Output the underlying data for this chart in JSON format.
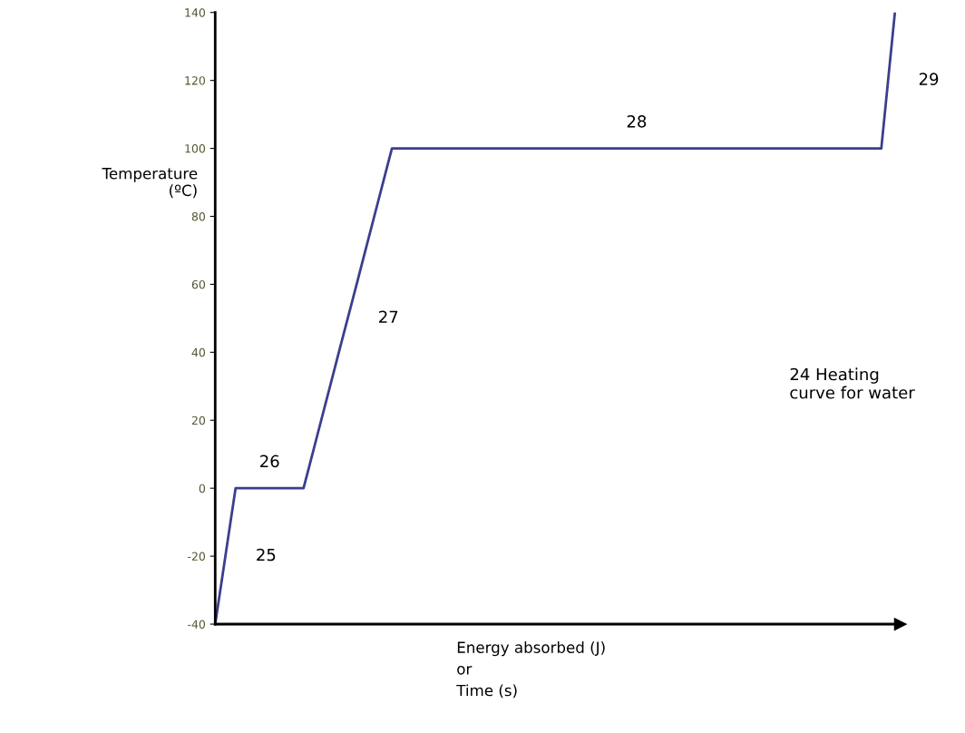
{
  "chart_data": {
    "type": "line",
    "xlabel": "Energy absorbed (J)\nor\nTime (s)",
    "ylabel": "Temperature\n(ºC)",
    "categories": [
      null,
      null,
      null,
      null,
      null,
      null,
      null,
      null,
      null,
      null,
      null,
      null,
      null,
      null,
      null,
      null,
      null,
      null,
      null,
      null,
      null,
      null,
      null,
      null,
      null,
      null,
      null,
      null,
      null,
      null,
      null,
      null,
      null,
      null,
      null,
      null,
      null,
      null,
      null,
      null,
      null,
      null,
      null,
      null,
      null,
      null,
      null,
      null,
      null,
      null,
      null,
      null,
      null,
      null,
      null,
      null,
      null,
      null,
      null,
      null,
      null,
      null,
      null,
      null,
      null,
      null,
      null,
      null,
      null,
      null,
      null,
      null,
      null,
      null,
      null,
      null,
      null,
      null,
      null,
      null,
      null,
      null,
      null,
      null,
      null,
      null,
      null,
      null,
      null,
      null,
      null,
      null,
      null,
      null,
      null,
      null,
      null,
      null,
      null,
      null,
      null
    ],
    "series": [
      {
        "color": "#3a3f8f",
        "values": [
          -40,
          -26.7,
          -13.3,
          0,
          0,
          0,
          0,
          0,
          0,
          0,
          0,
          0,
          0,
          0,
          7.7,
          15.4,
          23.1,
          30.8,
          38.5,
          46.2,
          53.8,
          61.5,
          69.2,
          76.9,
          84.6,
          92.3,
          100,
          100,
          100,
          100,
          100,
          100,
          100,
          100,
          100,
          100,
          100,
          100,
          100,
          100,
          100,
          100,
          100,
          100,
          100,
          100,
          100,
          100,
          100,
          100,
          100,
          100,
          100,
          100,
          100,
          100,
          100,
          100,
          100,
          100,
          100,
          100,
          100,
          100,
          100,
          100,
          100,
          100,
          100,
          100,
          100,
          100,
          100,
          100,
          100,
          100,
          100,
          100,
          100,
          100,
          100,
          100,
          100,
          100,
          100,
          100,
          100,
          100,
          100,
          100,
          100,
          100,
          100,
          100,
          100,
          100,
          100,
          100,
          100,
          120,
          140
        ]
      }
    ],
    "ylim": [
      -40,
      140
    ],
    "yticks": [
      -40,
      -20,
      0,
      20,
      40,
      60,
      80,
      100,
      120,
      140
    ],
    "tick_labels": "y",
    "grid": false,
    "legend": false,
    "marker": "none",
    "line_style": "solid",
    "annotations": [
      "25",
      "26",
      "27",
      "28",
      "29",
      "24 Heating\ncurve for water"
    ]
  }
}
